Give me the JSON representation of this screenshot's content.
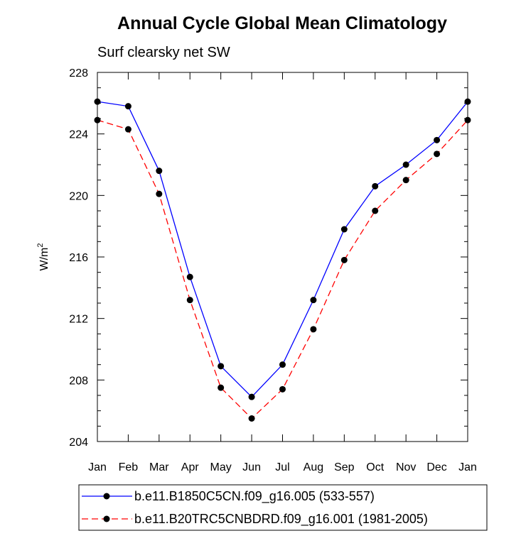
{
  "chart_data": {
    "type": "line",
    "title": "Annual Cycle Global Mean Climatology",
    "subtitle": "Surf clearsky net SW",
    "xlabel": "",
    "ylabel": "W/m",
    "ylabel_superscript": "2",
    "ylim": [
      204,
      228
    ],
    "yticks": [
      "204",
      "208",
      "212",
      "216",
      "220",
      "224",
      "228"
    ],
    "categories": [
      "Jan",
      "Feb",
      "Mar",
      "Apr",
      "May",
      "Jun",
      "Jul",
      "Aug",
      "Sep",
      "Oct",
      "Nov",
      "Dec",
      "Jan"
    ],
    "grid": false,
    "legend_position": "bottom",
    "series": [
      {
        "name": "b.e11.B1850C5CN.f09_g16.005 (533-557)",
        "color": "#0000ff",
        "line_style": "solid",
        "marker": "filled-circle",
        "values": [
          226.1,
          225.8,
          221.6,
          214.7,
          208.9,
          206.9,
          209.0,
          213.2,
          217.8,
          220.6,
          222.0,
          223.6,
          226.1
        ]
      },
      {
        "name": "b.e11.B20TRC5CNBDRD.f09_g16.001 (1981-2005)",
        "color": "#ff0000",
        "line_style": "dashed",
        "marker": "filled-circle",
        "values": [
          224.9,
          224.3,
          220.1,
          213.2,
          207.5,
          205.5,
          207.4,
          211.3,
          215.8,
          219.0,
          221.0,
          222.7,
          224.9
        ]
      }
    ]
  }
}
